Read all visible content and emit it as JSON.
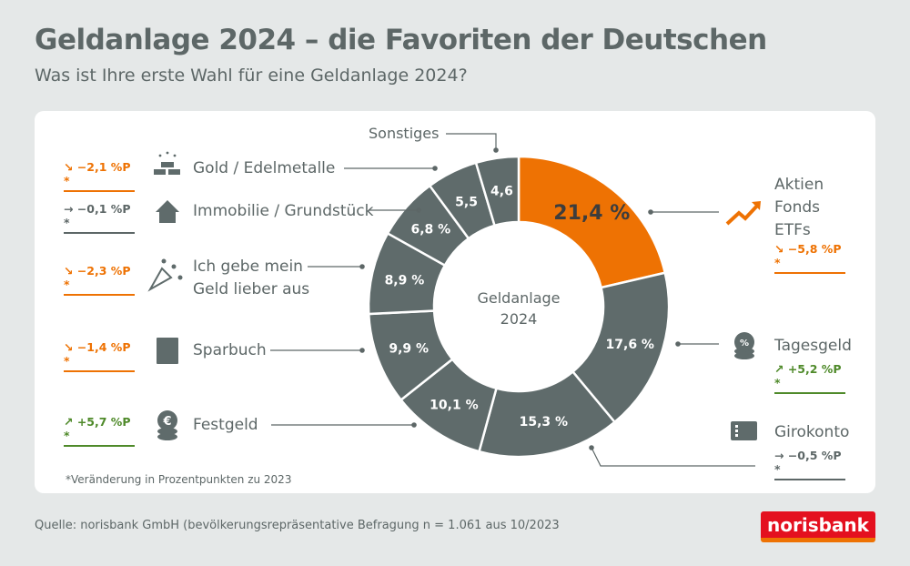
{
  "header": {
    "title": "Geldanlage 2024 – die Favoriten der Deutschen",
    "subtitle": "Was ist Ihre erste Wahl für eine Geldanlage 2024?"
  },
  "chart_data": {
    "type": "pie",
    "donut": true,
    "center_label": "Geldanlage 2024",
    "start": "top",
    "direction": "clockwise",
    "categories": [
      "Aktien Fonds ETFs",
      "Tagesgeld",
      "Girokonto",
      "Festgeld",
      "Sparbuch",
      "Ich gebe mein Geld lieber aus",
      "Immobilie / Grundstück",
      "Gold / Edelmetalle",
      "Sonstiges"
    ],
    "values": [
      21.4,
      17.6,
      15.3,
      10.1,
      9.9,
      8.9,
      6.8,
      5.5,
      4.6
    ],
    "data_labels": [
      "21,4 %",
      "17,6 %",
      "15,3 %",
      "10,1 %",
      "9,9 %",
      "8,9 %",
      "6,8 %",
      "5,5",
      "4,6"
    ],
    "colors": [
      "#ee7203",
      "#5f6b6b",
      "#5f6b6b",
      "#5f6b6b",
      "#5f6b6b",
      "#5f6b6b",
      "#5f6b6b",
      "#5f6b6b",
      "#5f6b6b"
    ],
    "changes": {
      "Aktien Fonds ETFs": "↘ −5,8 %P *",
      "Tagesgeld": "↗ +5,2 %P *",
      "Girokonto": "→ −0,5 %P *",
      "Festgeld": "↗ +5,7 %P *",
      "Sparbuch": "↘ −1,4 %P *",
      "Ich gebe mein Geld lieber aus": "↘ −2,3 %P *",
      "Immobilie / Grundstück": "→ −0,1 %P *",
      "Gold / Edelmetalle": "↘ −2,1 %P *"
    }
  },
  "labels": {
    "aktien": [
      "Aktien",
      "Fonds",
      "ETFs"
    ],
    "tagesgeld": "Tagesgeld",
    "girokonto": "Girokonto",
    "festgeld": "Festgeld",
    "sparbuch": "Sparbuch",
    "ausgeben": [
      "Ich gebe mein",
      "Geld lieber aus"
    ],
    "immobilie": "Immobilie / Grundstück",
    "gold": "Gold / Edelmetalle",
    "sonstiges": "Sonstiges"
  },
  "center": [
    "Geldanlage",
    "2024"
  ],
  "note": "*Veränderung in Prozentpunkten zu 2023",
  "source": "Quelle: norisbank GmbH (bevölkerungsrepräsentative Befragung n = 1.061 aus 10/2023",
  "logo": "norisbank",
  "colors": {
    "orange": "#ee7203",
    "green": "#4f8a2a",
    "gray": "#5f6b6b"
  }
}
